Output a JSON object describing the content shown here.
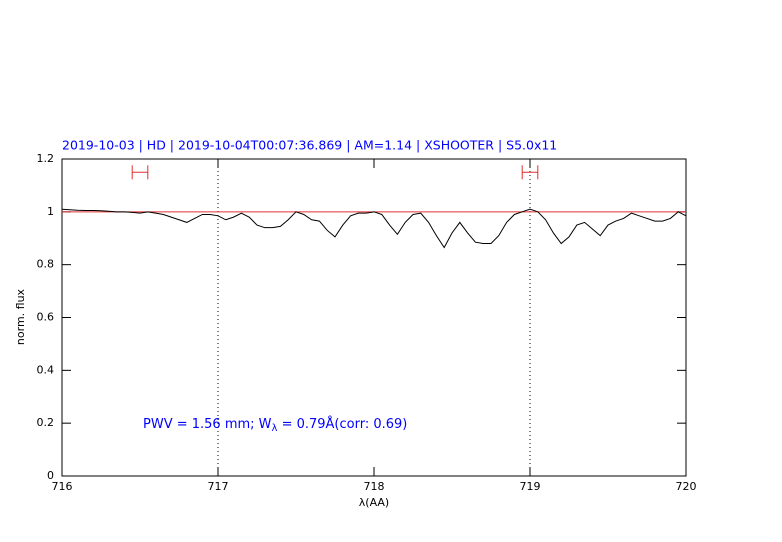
{
  "chart_data": {
    "type": "line",
    "title": "2019-10-03 | HD | 2019-10-04T00:07:36.869 | AM=1.14 | XSHOOTER | S5.0x11",
    "annotation": [
      "PWV = 1.56 mm; W",
      "λ",
      " = 0.79Å(corr: 0.69)"
    ],
    "xlabel": "λ(AA)",
    "ylabel": "norm. flux",
    "xlim": [
      716,
      720
    ],
    "ylim": [
      0,
      1.2
    ],
    "xticks": [
      716,
      717,
      718,
      719,
      720
    ],
    "yticks": [
      0,
      0.2,
      0.4,
      0.6,
      0.8,
      1,
      1.2
    ],
    "vlines": [
      717,
      719
    ],
    "hline": 1,
    "hline_color": "#e03030",
    "markers": [
      {
        "x": [
          716.45,
          716.55
        ],
        "y": 1.15
      },
      {
        "x": [
          718.95,
          719.05
        ],
        "y": 1.15
      }
    ],
    "marker_color": "#e03030",
    "x": [
      716.0,
      716.05,
      716.1,
      716.15,
      716.2,
      716.25,
      716.3,
      716.35,
      716.4,
      716.45,
      716.5,
      716.55,
      716.6,
      716.65,
      716.7,
      716.75,
      716.8,
      716.85,
      716.9,
      716.95,
      717.0,
      717.05,
      717.1,
      717.15,
      717.2,
      717.25,
      717.3,
      717.35,
      717.4,
      717.45,
      717.5,
      717.55,
      717.6,
      717.65,
      717.7,
      717.75,
      717.8,
      717.85,
      717.9,
      717.95,
      718.0,
      718.05,
      718.1,
      718.15,
      718.2,
      718.25,
      718.3,
      718.35,
      718.4,
      718.45,
      718.5,
      718.55,
      718.6,
      718.65,
      718.7,
      718.75,
      718.8,
      718.85,
      718.9,
      718.95,
      719.0,
      719.05,
      719.1,
      719.15,
      719.2,
      719.25,
      719.3,
      719.35,
      719.4,
      719.45,
      719.5,
      719.55,
      719.6,
      719.65,
      719.7,
      719.75,
      719.8,
      719.85,
      719.9,
      719.95,
      720.0
    ],
    "series": [
      {
        "color": "#000000",
        "values": [
          1.01,
          1.008,
          1.006,
          1.005,
          1.005,
          1.004,
          1.002,
          1.0,
          1.0,
          0.998,
          0.995,
          1.0,
          0.995,
          0.99,
          0.98,
          0.97,
          0.96,
          0.975,
          0.99,
          0.99,
          0.985,
          0.97,
          0.98,
          0.995,
          0.98,
          0.95,
          0.94,
          0.94,
          0.945,
          0.97,
          1.0,
          0.99,
          0.97,
          0.965,
          0.93,
          0.905,
          0.95,
          0.985,
          0.995,
          0.995,
          1.0,
          0.99,
          0.95,
          0.915,
          0.96,
          0.99,
          0.995,
          0.96,
          0.91,
          0.865,
          0.92,
          0.96,
          0.92,
          0.885,
          0.88,
          0.88,
          0.91,
          0.96,
          0.99,
          1.0,
          1.01,
          1.0,
          0.97,
          0.92,
          0.88,
          0.905,
          0.95,
          0.96,
          0.935,
          0.91,
          0.95,
          0.965,
          0.975,
          0.995,
          0.985,
          0.975,
          0.965,
          0.965,
          0.975,
          1.0,
          0.985
        ]
      }
    ]
  }
}
